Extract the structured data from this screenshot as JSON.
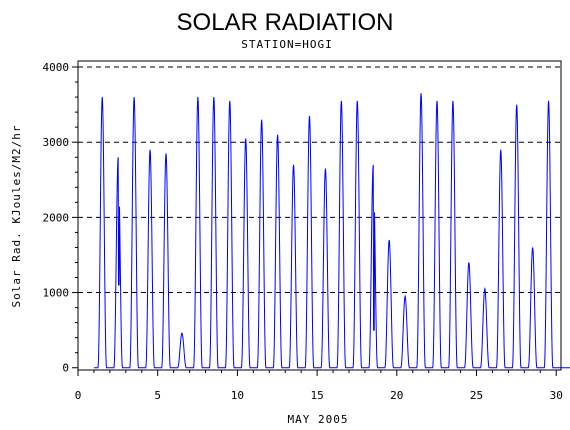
{
  "chart_data": {
    "type": "line",
    "title": "SOLAR RADIATION",
    "subtitle": "STATION=HOGI",
    "xlabel": "MAY 2005",
    "ylabel": "Solar Rad. KJoules/M2/hr",
    "xlim": [
      0,
      30.3
    ],
    "ylim": [
      -30,
      4080
    ],
    "xticks": [
      0,
      5,
      10,
      15,
      20,
      25,
      30
    ],
    "xtick_labels": [
      "0",
      "5",
      "10",
      "15",
      "20",
      "25",
      "30"
    ],
    "yticks": [
      0,
      1000,
      2000,
      3000,
      4000
    ],
    "ytick_labels": [
      "0",
      "1000",
      "2000",
      "3000",
      "4000"
    ],
    "grid": "horizontal dashed at y ticks",
    "line_color": "#0000ff",
    "daily_peaks": [
      {
        "day": 1,
        "peak": 3600
      },
      {
        "day": 2,
        "peak": 2800,
        "dip": 1100
      },
      {
        "day": 3,
        "peak": 3600
      },
      {
        "day": 4,
        "peak": 2900
      },
      {
        "day": 5,
        "peak": 2850
      },
      {
        "day": 6,
        "peak": 460
      },
      {
        "day": 7,
        "peak": 3600
      },
      {
        "day": 8,
        "peak": 3600
      },
      {
        "day": 9,
        "peak": 3550
      },
      {
        "day": 10,
        "peak": 3050
      },
      {
        "day": 11,
        "peak": 3300
      },
      {
        "day": 12,
        "peak": 3100
      },
      {
        "day": 13,
        "peak": 2700
      },
      {
        "day": 14,
        "peak": 3350
      },
      {
        "day": 15,
        "peak": 2650
      },
      {
        "day": 16,
        "peak": 3550
      },
      {
        "day": 17,
        "peak": 3550
      },
      {
        "day": 18,
        "peak": 2700,
        "dip": 500
      },
      {
        "day": 19,
        "peak": 1700
      },
      {
        "day": 20,
        "peak": 950
      },
      {
        "day": 21,
        "peak": 3650
      },
      {
        "day": 22,
        "peak": 3550
      },
      {
        "day": 23,
        "peak": 3550
      },
      {
        "day": 24,
        "peak": 1400
      },
      {
        "day": 25,
        "peak": 1050
      },
      {
        "day": 26,
        "peak": 2900
      },
      {
        "day": 27,
        "peak": 3500
      },
      {
        "day": 28,
        "peak": 1600
      },
      {
        "day": 29,
        "peak": 3550
      }
    ]
  }
}
